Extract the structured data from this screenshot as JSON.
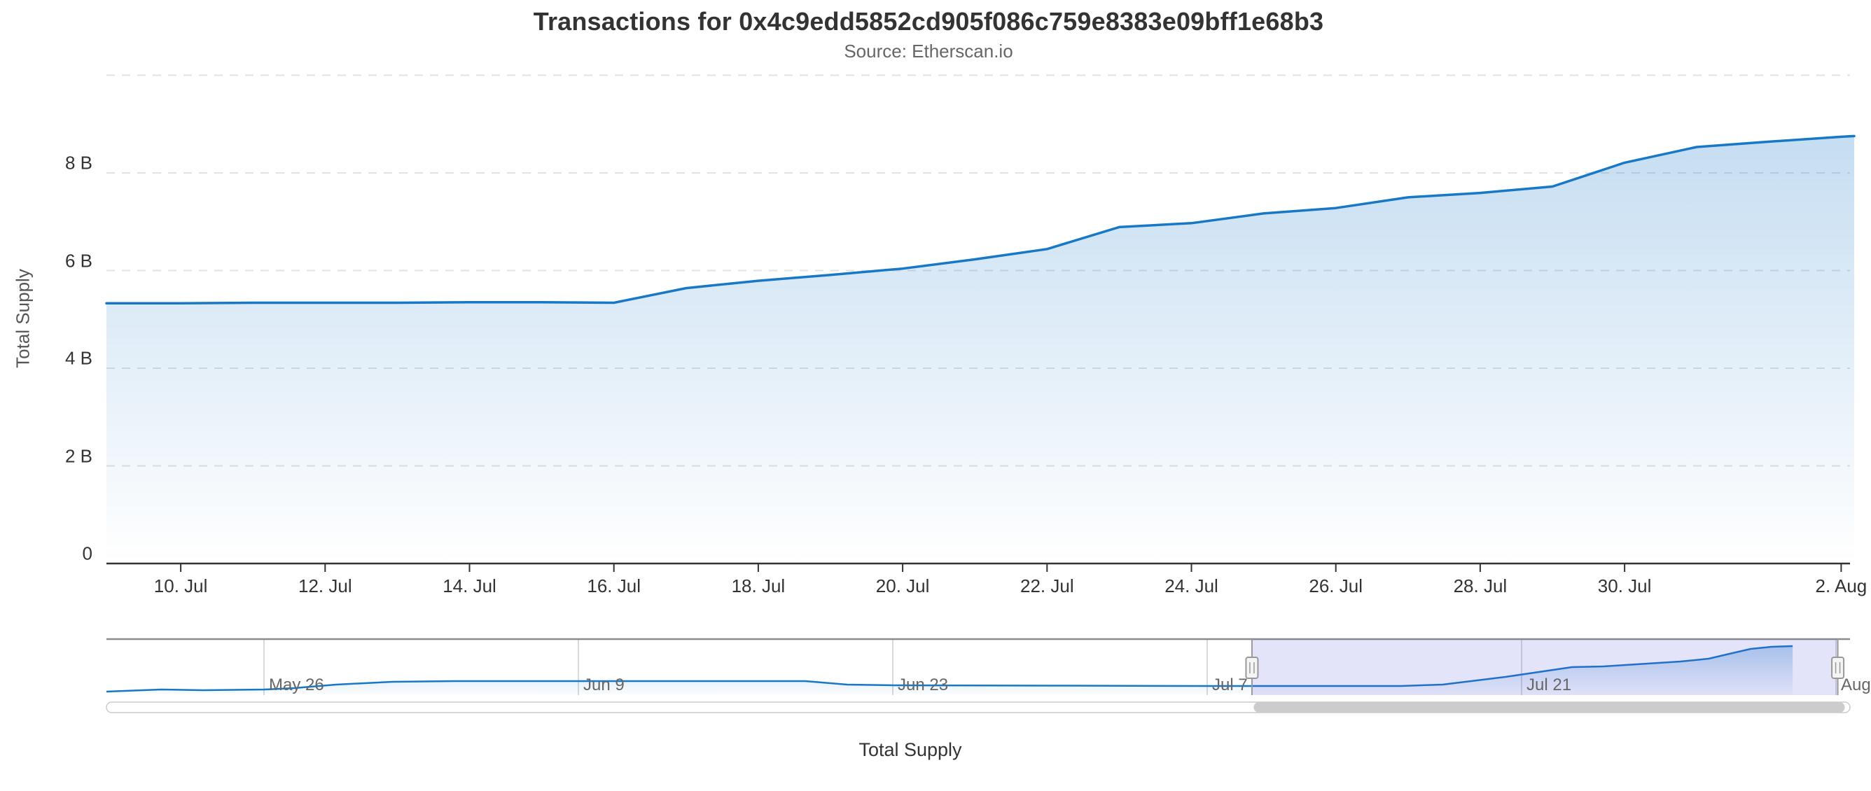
{
  "title": "Transactions for 0x4c9edd5852cd905f086c759e8383e09bff1e68b3",
  "subtitle": "Source: Etherscan.io",
  "legend": {
    "label": "Total Supply"
  },
  "y_axis": {
    "title": "Total Supply",
    "ticks": [
      {
        "label": "0",
        "value": 0
      },
      {
        "label": "2 B",
        "value": 2
      },
      {
        "label": "4 B",
        "value": 4
      },
      {
        "label": "6 B",
        "value": 6
      },
      {
        "label": "8 B",
        "value": 8
      }
    ],
    "grid_values": [
      2,
      4,
      6,
      8,
      10
    ]
  },
  "x_axis": {
    "ticks": [
      {
        "label": "10. Jul",
        "i": 1
      },
      {
        "label": "12. Jul",
        "i": 3
      },
      {
        "label": "14. Jul",
        "i": 5
      },
      {
        "label": "16. Jul",
        "i": 7
      },
      {
        "label": "18. Jul",
        "i": 9
      },
      {
        "label": "20. Jul",
        "i": 11
      },
      {
        "label": "22. Jul",
        "i": 13
      },
      {
        "label": "24. Jul",
        "i": 15
      },
      {
        "label": "26. Jul",
        "i": 17
      },
      {
        "label": "28. Jul",
        "i": 19
      },
      {
        "label": "30. Jul",
        "i": 21
      },
      {
        "label": "2. Aug",
        "i": 24
      }
    ]
  },
  "chart_data": {
    "type": "area",
    "title": "Transactions for 0x4c9edd5852cd905f086c759e8383e09bff1e68b3",
    "subtitle": "Source: Etherscan.io",
    "xlabel": "",
    "ylabel": "Total Supply",
    "ylim": [
      0,
      10
    ],
    "unit": "billions",
    "grid": "dashed-horizontal",
    "legend_position": "bottom-center",
    "x": [
      "Jul 9",
      "Jul 10",
      "Jul 11",
      "Jul 12",
      "Jul 13",
      "Jul 14",
      "Jul 15",
      "Jul 16",
      "Jul 17",
      "Jul 18",
      "Jul 19",
      "Jul 20",
      "Jul 21",
      "Jul 22",
      "Jul 23",
      "Jul 24",
      "Jul 25",
      "Jul 26",
      "Jul 27",
      "Jul 28",
      "Jul 29",
      "Jul 30",
      "Jul 31",
      "Aug 1",
      "Aug 2"
    ],
    "series": [
      {
        "name": "Total Supply",
        "values": [
          5.33,
          5.33,
          5.34,
          5.34,
          5.34,
          5.35,
          5.35,
          5.34,
          5.64,
          5.79,
          5.91,
          6.04,
          6.23,
          6.44,
          6.89,
          6.97,
          7.17,
          7.28,
          7.5,
          7.59,
          7.72,
          8.21,
          8.53,
          8.64,
          8.74
        ]
      }
    ]
  },
  "navigator": {
    "labels": [
      "May 26",
      "Jun 9",
      "Jun 23",
      "Jul 7",
      "Jul 21",
      "Aug"
    ],
    "points": [
      [
        0.0,
        0.0625
      ],
      [
        0.0313,
        0.1
      ],
      [
        0.0554,
        0.0875
      ],
      [
        0.0904,
        0.1
      ],
      [
        0.1076,
        0.125
      ],
      [
        0.1317,
        0.1875
      ],
      [
        0.1639,
        0.2375
      ],
      [
        0.2,
        0.25
      ],
      [
        0.2703,
        0.25
      ],
      [
        0.4008,
        0.25
      ],
      [
        0.4249,
        0.1875
      ],
      [
        0.4518,
        0.175
      ],
      [
        0.5414,
        0.169
      ],
      [
        0.6321,
        0.1625
      ],
      [
        0.7422,
        0.1625
      ],
      [
        0.7663,
        0.1875
      ],
      [
        0.8024,
        0.325
      ],
      [
        0.8406,
        0.5
      ],
      [
        0.8586,
        0.5125
      ],
      [
        0.9028,
        0.6
      ],
      [
        0.9189,
        0.65
      ],
      [
        0.9309,
        0.7375
      ],
      [
        0.943,
        0.825
      ],
      [
        0.955,
        0.8625
      ],
      [
        0.9671,
        0.875
      ]
    ],
    "selection": {
      "from": 0.657,
      "to": 0.993
    },
    "scrollbar": {
      "from": 0.658,
      "to": 0.997
    }
  },
  "colors": {
    "line": "#1878c8",
    "grid": "#e2e2e2",
    "axis_line": "#333333",
    "label": "#333333",
    "muted": "#666666",
    "mask": "rgba(80,80,220,0.16)",
    "nav_outline": "#8c8c8c",
    "nav_grid": "#cccccc",
    "handle_fill": "#f4f4f4",
    "handle_stroke": "#999999",
    "scrollbar_track": "#ffffff",
    "scrollbar_border": "#cccccc",
    "scrollbar_thumb": "#cccccc"
  }
}
